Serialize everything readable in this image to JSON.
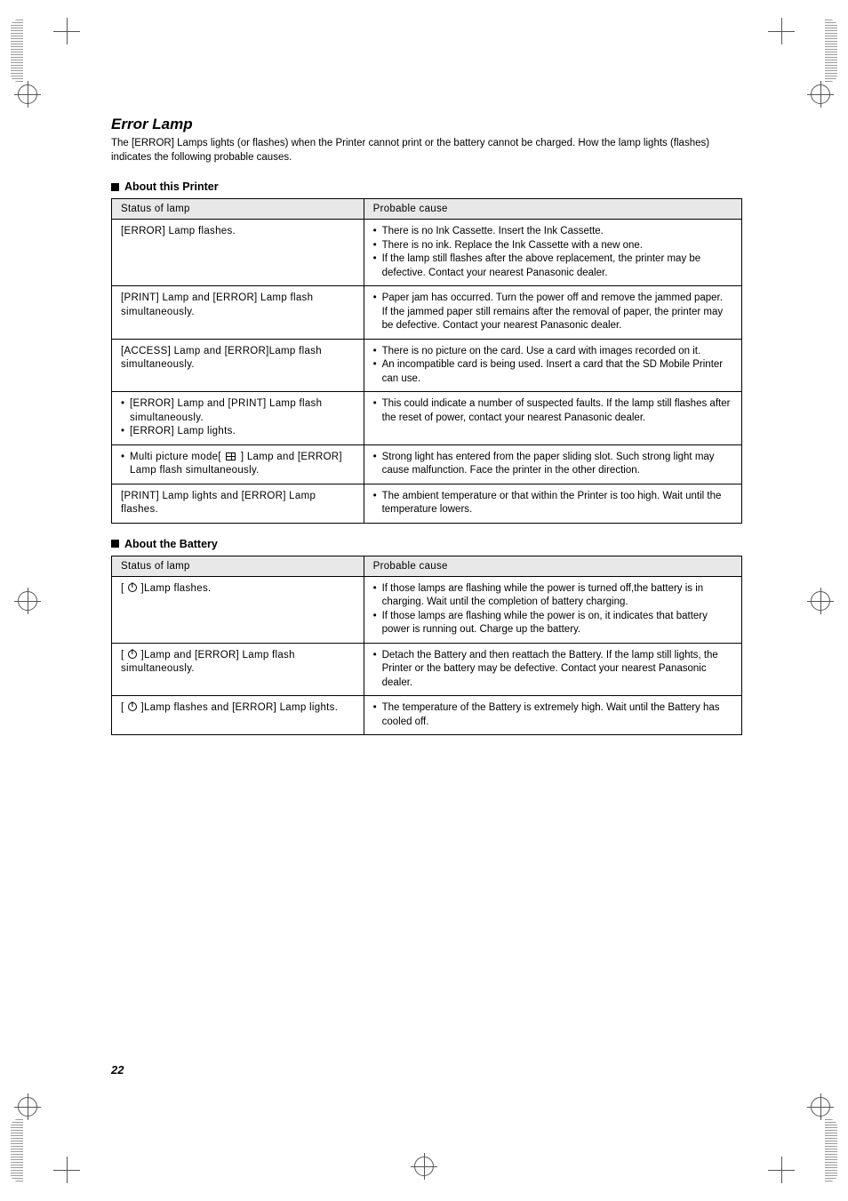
{
  "section_title": "Error Lamp",
  "intro": "The [ERROR] Lamps lights (or flashes) when the Printer cannot print or the battery cannot be charged. How the lamp lights (flashes) indicates the following probable causes.",
  "table_headers": {
    "status": "Status of lamp",
    "cause": "Probable cause"
  },
  "printer": {
    "heading": "About this Printer",
    "rows": [
      {
        "status": "[ERROR] Lamp flashes.",
        "causes": [
          "There is no Ink Cassette. Insert the Ink Cassette.",
          "There is no ink. Replace the Ink Cassette with a new one.",
          "If the lamp still flashes after the above replacement, the printer may be defective. Contact your nearest Panasonic dealer."
        ]
      },
      {
        "status": "[PRINT] Lamp and [ERROR] Lamp flash simultaneously.",
        "causes": [
          "Paper jam has occurred. Turn the power off and remove the jammed paper.\nIf the jammed paper still remains after the removal of paper, the printer may be defective. Contact your nearest Panasonic dealer."
        ]
      },
      {
        "status": "[ACCESS] Lamp and [ERROR]Lamp flash simultaneously.",
        "causes": [
          "There is no picture on the card. Use a card with images recorded on it.",
          "An incompatible card is being used. Insert a card that the SD Mobile Printer can use."
        ]
      },
      {
        "status_items": [
          "[ERROR] Lamp and [PRINT] Lamp flash simultaneously.",
          "[ERROR] Lamp lights."
        ],
        "causes": [
          "This could indicate a number of suspected faults. If the lamp still flashes after the reset of power, contact your nearest Panasonic dealer."
        ]
      },
      {
        "status_prefix": "Multi picture mode[ ",
        "status_suffix": " ] Lamp and [ERROR] Lamp flash simultaneously.",
        "status_icon": "grid",
        "causes": [
          "Strong light has entered from the paper sliding slot. Such strong light may cause malfunction. Face the printer in the other direction."
        ]
      },
      {
        "status": "[PRINT] Lamp lights and [ERROR] Lamp flashes.",
        "causes": [
          "The ambient temperature or that within the Printer is too high. Wait until the temperature lowers."
        ]
      }
    ]
  },
  "battery": {
    "heading": "About the Battery",
    "rows": [
      {
        "status_prefix": "[ ",
        "status_suffix": " ]Lamp flashes.",
        "status_icon": "power",
        "causes": [
          "If those lamps are flashing while the power is turned off,the battery is in charging. Wait until the completion of battery charging.",
          "If those lamps are flashing while the power is on, it indicates that battery power is running out. Charge up the battery."
        ]
      },
      {
        "status_prefix": "[ ",
        "status_suffix": " ]Lamp and [ERROR] Lamp flash simultaneously.",
        "status_icon": "power",
        "causes": [
          "Detach the Battery and then reattach the Battery. If the lamp still lights, the Printer or the battery may be defective. Contact your nearest Panasonic dealer."
        ]
      },
      {
        "status_prefix": "[ ",
        "status_suffix": " ]Lamp flashes and [ERROR] Lamp lights.",
        "status_icon": "power",
        "causes": [
          "The temperature of the Battery is extremely high. Wait until the Battery has cooled off."
        ]
      }
    ]
  },
  "page_number": "22",
  "colors": {
    "header_bg": "#e8e8e8",
    "border": "#000000",
    "text": "#000000",
    "background": "#ffffff"
  },
  "typography": {
    "title_fontsize_pt": 13,
    "body_fontsize_pt": 8.5,
    "subheading_fontsize_pt": 9.5,
    "font_family": "Arial, Helvetica, sans-serif"
  }
}
